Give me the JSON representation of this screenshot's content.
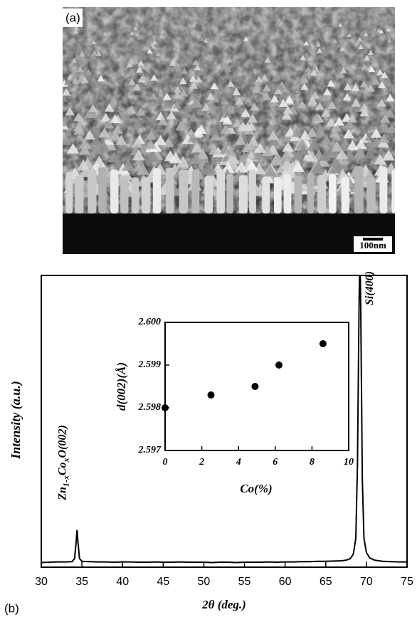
{
  "image_panel": {
    "label": "(a)",
    "scale_bar": "100nm"
  },
  "chart_data": [
    {
      "type": "line",
      "panel_label": "(b)",
      "x_label": "2θ (deg.)",
      "y_label": "Intensity (a.u.)",
      "xlim": [
        30,
        75
      ],
      "xticks": [
        30,
        35,
        40,
        45,
        50,
        55,
        60,
        65,
        70,
        75
      ],
      "ylim": [
        0,
        100
      ],
      "annotations": [
        {
          "text": [
            "Zn",
            "1-x",
            "Co",
            "x",
            "O(002)"
          ],
          "x": 34.4
        },
        {
          "text": [
            "Si(400)"
          ],
          "x": 69.2
        }
      ],
      "series": [
        {
          "color": "#000000",
          "x": [
            30,
            31,
            32,
            33,
            33.8,
            34.1,
            34.3,
            34.4,
            34.5,
            34.7,
            35,
            36,
            37,
            38,
            39,
            40,
            41,
            42,
            43,
            44,
            45,
            46,
            47,
            48,
            49,
            50,
            51,
            52,
            53,
            54,
            55,
            56,
            57,
            58,
            59,
            60,
            61,
            62,
            63,
            64,
            65,
            66,
            67,
            67.5,
            68,
            68.4,
            68.7,
            68.9,
            69.1,
            69.2,
            69.3,
            69.5,
            69.7,
            70,
            70.4,
            71,
            72,
            73,
            74,
            75
          ],
          "values": [
            1.6,
            1.7,
            1.8,
            1.8,
            1.9,
            3.0,
            9.0,
            12.8,
            9.0,
            3.0,
            2.0,
            1.9,
            1.8,
            1.8,
            1.7,
            1.8,
            1.8,
            1.7,
            1.7,
            1.8,
            1.7,
            1.7,
            1.8,
            1.7,
            1.7,
            1.7,
            1.6,
            1.7,
            1.7,
            1.6,
            1.7,
            1.7,
            1.7,
            1.8,
            1.7,
            1.8,
            1.8,
            1.9,
            1.9,
            2.0,
            2.0,
            2.1,
            2.2,
            2.4,
            2.9,
            4.5,
            10,
            35,
            90,
            110,
            90,
            30,
            10,
            5,
            3.2,
            2.4,
            2.0,
            1.9,
            1.8,
            1.8
          ]
        }
      ]
    },
    {
      "type": "scatter",
      "x_label": "Co(%)",
      "y_label": "d(002)(Å)",
      "xlim": [
        0,
        10
      ],
      "xticks": [
        0,
        2,
        4,
        6,
        8,
        10
      ],
      "ylim": [
        2.597,
        2.6
      ],
      "yticks": [
        2.597,
        2.598,
        2.599,
        {
          "value": 2.6,
          "label": "2.600"
        }
      ],
      "series": [
        {
          "color": "#000000",
          "x": [
            0,
            2.5,
            4.9,
            6.2,
            8.6
          ],
          "values": [
            2.598,
            2.5983,
            2.5985,
            2.599,
            2.5995
          ]
        }
      ]
    }
  ]
}
